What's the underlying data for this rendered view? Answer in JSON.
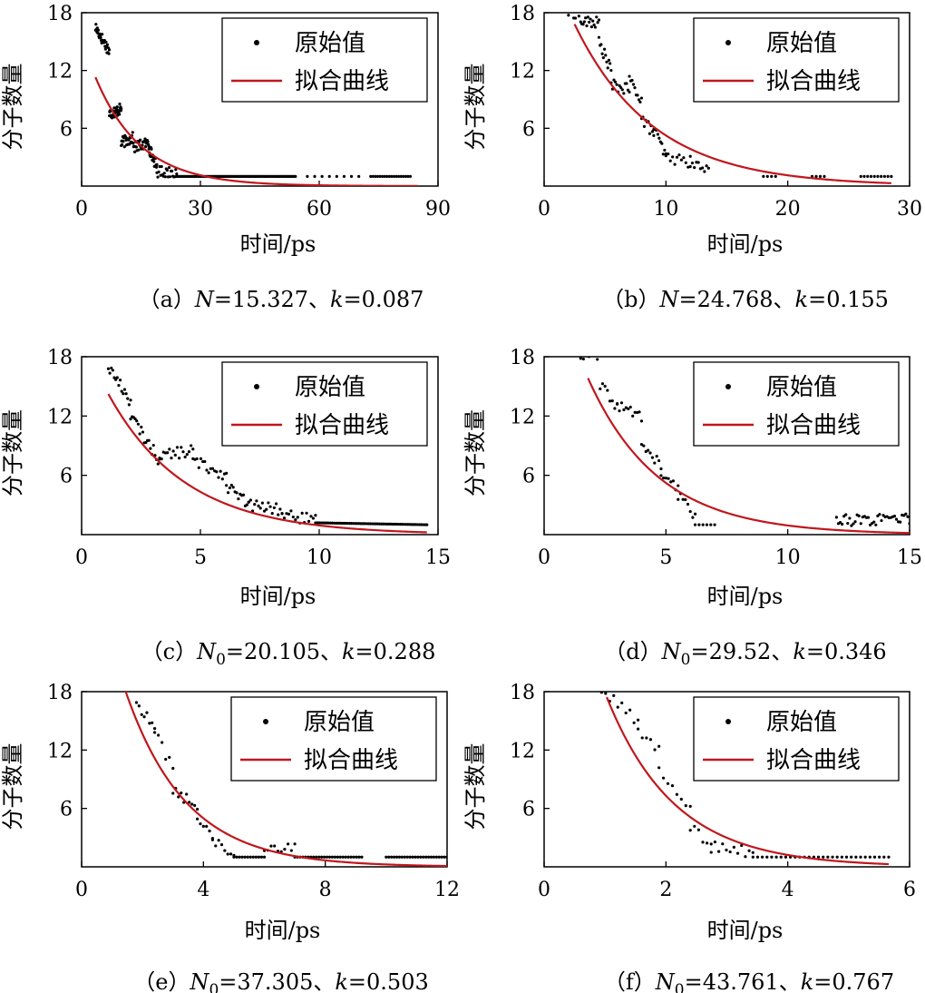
{
  "colors": {
    "raw": "#000000",
    "fit": "#c0171d",
    "axis": "#000000",
    "background": "#ffffff"
  },
  "chart_data": [
    {
      "id": "a",
      "type": "scatter",
      "caption": {
        "open": "（a）",
        "n_symbol": "N",
        "n_sub": "",
        "n_value": "=15.327",
        "sep": "、",
        "k_symbol": "k",
        "k_value": "=0.087"
      },
      "xlabel": "时间/ps",
      "ylabel": "分子数量",
      "xlim": [
        0,
        90
      ],
      "ylim": [
        0,
        18
      ],
      "xticks": [
        "0",
        "30",
        "60",
        "90"
      ],
      "yticks": [
        "6",
        "12",
        "18"
      ],
      "legend": {
        "raw": "原始值",
        "fit": "拟合曲线",
        "position": "top-right"
      },
      "fit": {
        "N": 15.327,
        "k": 0.087,
        "x0": 3.5,
        "x1": 85
      },
      "series": [
        {
          "segments": [
            [
              3.5,
              16.5,
              7,
              14,
              30
            ],
            [
              7,
              7.5,
              10,
              8,
              40
            ],
            [
              10,
              4.5,
              13,
              5,
              30
            ],
            [
              13,
              4.0,
              17,
              4.5,
              30
            ],
            [
              17,
              4.0,
              19,
              2,
              20
            ],
            [
              19,
              1.5,
              24,
              1.5,
              22
            ],
            [
              24,
              1.0,
              54,
              1.0,
              90
            ],
            [
              57,
              1.0,
              70,
              1.0,
              8
            ],
            [
              73,
              1.0,
              83,
              1.0,
              18
            ]
          ]
        }
      ]
    },
    {
      "id": "b",
      "type": "scatter",
      "caption": {
        "open": "（b）",
        "n_symbol": "N",
        "n_sub": "",
        "n_value": "=24.768",
        "sep": "、",
        "k_symbol": "k",
        "k_value": "=0.155"
      },
      "xlabel": "时间/ps",
      "ylabel": "分子数量",
      "xlim": [
        0,
        30
      ],
      "ylim": [
        0,
        18
      ],
      "xticks": [
        "0",
        "10",
        "20",
        "30"
      ],
      "yticks": [
        "6",
        "12",
        "18"
      ],
      "legend": {
        "raw": "原始值",
        "fit": "拟合曲线",
        "position": "top-right"
      },
      "fit": {
        "N": 24.768,
        "k": 0.155,
        "x0": 2.5,
        "x1": 28.5
      },
      "series": [
        {
          "segments": [
            [
              2.0,
              18,
              3.0,
              18,
              8
            ],
            [
              3.0,
              17,
              4.5,
              17,
              16
            ],
            [
              4.5,
              15,
              5.5,
              12,
              12
            ],
            [
              5.5,
              10.5,
              7,
              10,
              14
            ],
            [
              7,
              11,
              8,
              9,
              10
            ],
            [
              8,
              7,
              9,
              5.5,
              10
            ],
            [
              9,
              6,
              10,
              3,
              10
            ],
            [
              10,
              3,
              12,
              2.5,
              12
            ],
            [
              12,
              2.5,
              13.5,
              1.5,
              10
            ],
            [
              18,
              1.0,
              19,
              1.0,
              4
            ],
            [
              22,
              1.0,
              23,
              1.0,
              4
            ],
            [
              26,
              1.0,
              28.5,
              1.0,
              10
            ]
          ]
        }
      ]
    },
    {
      "id": "c",
      "type": "scatter",
      "caption": {
        "open": "（c）",
        "n_symbol": "N",
        "n_sub": "0",
        "n_value": "=20.105",
        "sep": "、",
        "k_symbol": "k",
        "k_value": "=0.288"
      },
      "xlabel": "时间/ps",
      "ylabel": "分子数量",
      "xlim": [
        0,
        16
      ],
      "ylim": [
        0,
        18
      ],
      "xticks": [
        "0",
        "5",
        "10",
        "15"
      ],
      "yticks": [
        "6",
        "12",
        "18"
      ],
      "legend": {
        "raw": "原始值",
        "fit": "拟合曲线",
        "position": "top-right"
      },
      "fit": {
        "N": 20.105,
        "k": 0.288,
        "x0": 1.2,
        "x1": 15.5
      },
      "series": [
        {
          "segments": [
            [
              1.2,
              17,
              2.2,
              13.5,
              16
            ],
            [
              2.2,
              12,
              3.5,
              7.5,
              20
            ],
            [
              3.5,
              8,
              5,
              8.5,
              18
            ],
            [
              5,
              7.5,
              6.5,
              6,
              18
            ],
            [
              6.5,
              5,
              7.5,
              3,
              14
            ],
            [
              7.5,
              3,
              9,
              2.5,
              18
            ],
            [
              9,
              2,
              10.5,
              1.5,
              16
            ],
            [
              10.5,
              1.2,
              15.5,
              1.0,
              60
            ]
          ]
        }
      ]
    },
    {
      "id": "d",
      "type": "scatter",
      "caption": {
        "open": "（d）",
        "n_symbol": "N",
        "n_sub": "0",
        "n_value": "=29.52",
        "sep": "、",
        "k_symbol": "k",
        "k_value": "=0.346"
      },
      "xlabel": "时间/ps",
      "ylabel": "分子数量",
      "xlim": [
        0,
        15
      ],
      "ylim": [
        0,
        18
      ],
      "xticks": [
        "0",
        "5",
        "10",
        "15"
      ],
      "yticks": [
        "6",
        "12",
        "18"
      ],
      "legend": {
        "raw": "原始值",
        "fit": "拟合曲线",
        "position": "top-right"
      },
      "fit": {
        "N": 29.52,
        "k": 0.346,
        "x0": 1.8,
        "x1": 15
      },
      "series": [
        {
          "segments": [
            [
              1.5,
              18,
              2.3,
              18,
              8
            ],
            [
              2.3,
              15,
              3,
              13,
              8
            ],
            [
              3,
              13,
              4,
              12,
              12
            ],
            [
              4,
              9,
              4.8,
              7,
              10
            ],
            [
              4.8,
              6,
              5.5,
              4.5,
              8
            ],
            [
              5.5,
              4,
              6.2,
              2,
              8
            ],
            [
              6.2,
              1.0,
              7,
              1.0,
              6
            ],
            [
              12,
              1.5,
              15,
              1.5,
              40
            ]
          ]
        }
      ]
    },
    {
      "id": "e",
      "type": "scatter",
      "caption": {
        "open": "（e）",
        "n_symbol": "N",
        "n_sub": "0",
        "n_value": "=37.305",
        "sep": "、",
        "k_symbol": "k",
        "k_value": "=0.503"
      },
      "xlabel": "时间/ps",
      "ylabel": "分子数量",
      "xlim": [
        0,
        12
      ],
      "ylim": [
        0,
        18
      ],
      "xticks": [
        "0",
        "4",
        "8",
        "12"
      ],
      "yticks": [
        "6",
        "12",
        "18"
      ],
      "legend": {
        "raw": "原始值",
        "fit": "拟合曲线",
        "position": "top-right"
      },
      "fit": {
        "N": 37.305,
        "k": 0.503,
        "x0": 1.4,
        "x1": 12
      },
      "series": [
        {
          "segments": [
            [
              1.8,
              17,
              2.4,
              14,
              8
            ],
            [
              2.4,
              14,
              3,
              10,
              6
            ],
            [
              3,
              8,
              3.8,
              6,
              10
            ],
            [
              3.8,
              5,
              4.3,
              3.5,
              6
            ],
            [
              4.3,
              2.5,
              5,
              1.5,
              8
            ],
            [
              5,
              1.0,
              6,
              1.0,
              12
            ],
            [
              6,
              2.0,
              7,
              2.0,
              10
            ],
            [
              7,
              1.0,
              9.2,
              1.0,
              26
            ],
            [
              10,
              1.0,
              12,
              1.0,
              24
            ]
          ]
        }
      ]
    },
    {
      "id": "f",
      "type": "scatter",
      "caption": {
        "open": "（f）",
        "n_symbol": "N",
        "n_sub": "0",
        "n_value": "=43.761",
        "sep": "、",
        "k_symbol": "k",
        "k_value": "=0.767"
      },
      "xlabel": "时间/ps",
      "ylabel": "分子数量",
      "xlim": [
        0,
        7
      ],
      "ylim": [
        0,
        18
      ],
      "xticks": [
        "0",
        "2",
        "4",
        "6"
      ],
      "yticks": [
        "6",
        "12",
        "18"
      ],
      "legend": {
        "raw": "原始值",
        "fit": "拟合曲线",
        "position": "top-right"
      },
      "fit": {
        "N": 43.761,
        "k": 0.767,
        "x0": 1.2,
        "x1": 6.6
      },
      "series": [
        {
          "segments": [
            [
              1.1,
              18,
              1.8,
              15,
              10
            ],
            [
              1.8,
              14,
              2.2,
              12,
              6
            ],
            [
              2.2,
              10,
              2.8,
              6,
              8
            ],
            [
              2.8,
              4,
              3.2,
              2.5,
              6
            ],
            [
              3.2,
              2.0,
              4,
              1.5,
              12
            ],
            [
              4,
              1.0,
              6.6,
              1.0,
              30
            ]
          ]
        }
      ]
    }
  ]
}
